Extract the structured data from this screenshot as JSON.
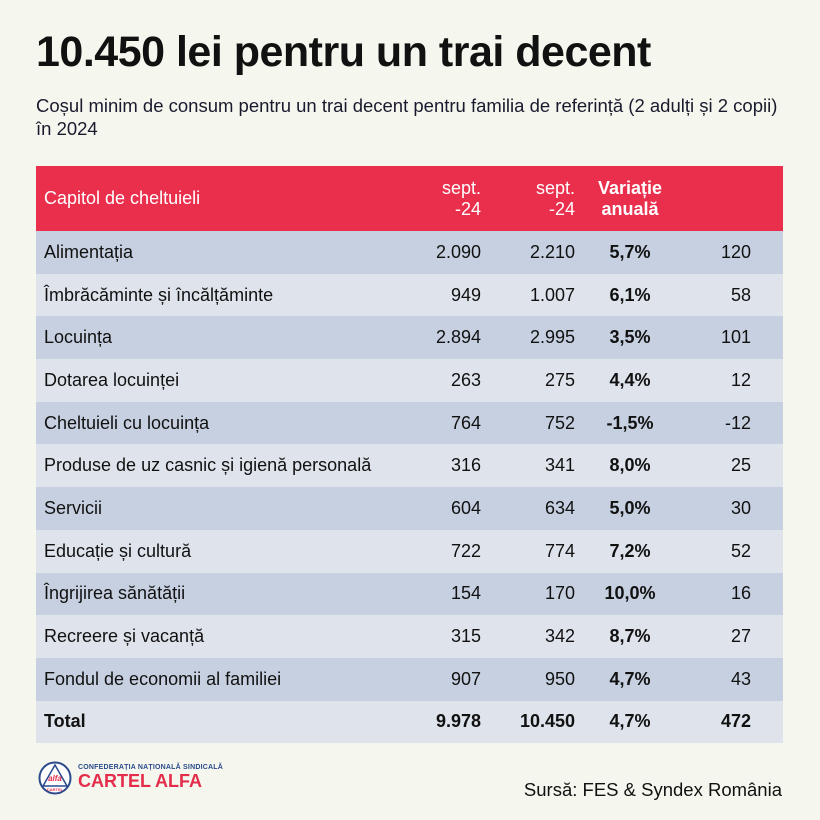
{
  "title": "10.450 lei pentru un trai decent",
  "subtitle": "Coșul minim de consum pentru un trai decent pentru familia de referință (2 adulți și 2 copii) în 2024",
  "table": {
    "headers": [
      "Capitol de cheltuieli",
      "sept. -24",
      "sept. -24",
      "Variație anuală",
      ""
    ],
    "header_lines": {
      "c1a": "sept.",
      "c1b": "-24",
      "c2a": "sept.",
      "c2b": "-24",
      "c3a": "Variație",
      "c3b": "anuală"
    },
    "rows": [
      [
        "Alimentația",
        "2.090",
        "2.210",
        "5,7%",
        "120"
      ],
      [
        "Îmbrăcăminte și încălțăminte",
        "949",
        "1.007",
        "6,1%",
        "58"
      ],
      [
        "Locuința",
        "2.894",
        "2.995",
        "3,5%",
        "101"
      ],
      [
        "Dotarea locuinței",
        "263",
        "275",
        "4,4%",
        "12"
      ],
      [
        "Cheltuieli cu locuința",
        "764",
        "752",
        "-1,5%",
        "-12"
      ],
      [
        "Produse de uz casnic și igienă personală",
        "316",
        "341",
        "8,0%",
        "25"
      ],
      [
        "Servicii",
        "604",
        "634",
        "5,0%",
        "30"
      ],
      [
        "Educație și cultură",
        "722",
        "774",
        "7,2%",
        "52"
      ],
      [
        "Îngrijirea sănătății",
        "154",
        "170",
        "10,0%",
        "16"
      ],
      [
        "Recreere și vacanță",
        "315",
        "342",
        "8,7%",
        "27"
      ],
      [
        "Fondul de economii al familiei",
        "907",
        "950",
        "4,7%",
        "43"
      ]
    ],
    "total": [
      "Total",
      "9.978",
      "10.450",
      "4,7%",
      "472"
    ]
  },
  "logo": {
    "line1": "CONFEDERAȚIA NAȚIONALĂ SINDICALĂ",
    "line2": "CARTEL ALFA",
    "emblem_top": "alfa",
    "emblem_bottom": "CARTEL"
  },
  "source": "Sursă: FES & Syndex România",
  "colors": {
    "header": "#ea2f4d",
    "row_odd": "#c6d0e0",
    "row_even": "#dfe4ec",
    "background": "#f5f7ee"
  }
}
